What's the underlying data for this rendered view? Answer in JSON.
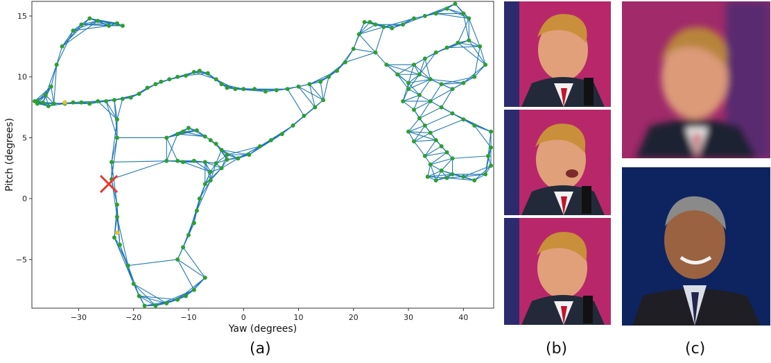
{
  "figure": {
    "panel_labels": [
      "(a)",
      "(b)",
      "(c)"
    ]
  },
  "chart_data": {
    "type": "scatter",
    "xlabel": "Yaw (degrees)",
    "ylabel": "Pitch (degrees)",
    "xlim": [
      -38.5,
      45.5
    ],
    "ylim": [
      -9.0,
      16.2
    ],
    "xticks": [
      -30,
      -20,
      -10,
      0,
      10,
      20,
      30,
      40
    ],
    "yticks": [
      -5,
      0,
      5,
      10,
      15
    ],
    "grid": false,
    "colors": {
      "edge": "#1f77b4",
      "vertex": "#2ca02c",
      "highlight": "#e6c229",
      "query": "#e8392f"
    },
    "series": [
      {
        "points": [
          [
            -38,
            8
          ],
          [
            -37.5,
            7.8
          ],
          [
            -36,
            8.5
          ],
          [
            -35,
            9.2
          ],
          [
            -34,
            11
          ],
          [
            -33,
            12.5
          ],
          [
            -31,
            13.8
          ],
          [
            -29.5,
            14.3
          ],
          [
            -28,
            14.8
          ],
          [
            -26.5,
            14.6
          ],
          [
            -24.5,
            14.2
          ],
          [
            -23,
            14.4
          ],
          [
            -22,
            14.2
          ],
          [
            -35.5,
            7.6
          ],
          [
            -34.5,
            7.8
          ],
          [
            -32.5,
            7.8
          ],
          [
            -31,
            7.9
          ],
          [
            -29.5,
            7.9
          ],
          [
            -28,
            7.8
          ],
          [
            -26.5,
            8
          ],
          [
            -25,
            8
          ],
          [
            -23.5,
            8.1
          ],
          [
            -22,
            8.2
          ],
          [
            -20.5,
            8.3
          ],
          [
            -19,
            8.6
          ],
          [
            -17.5,
            9.1
          ],
          [
            -16,
            9.4
          ],
          [
            -15,
            9.6
          ],
          [
            -13.5,
            9.8
          ],
          [
            -12,
            10
          ],
          [
            -10.5,
            10.1
          ],
          [
            -9,
            10.4
          ],
          [
            -8,
            10.5
          ],
          [
            -6.5,
            10.3
          ],
          [
            -5,
            9.8
          ],
          [
            -4,
            9.4
          ],
          [
            -3,
            9.1
          ],
          [
            -1.5,
            9
          ],
          [
            0,
            9
          ],
          [
            2,
            9
          ],
          [
            4,
            8.8
          ],
          [
            6,
            8.9
          ],
          [
            8,
            9
          ],
          [
            10,
            9.2
          ],
          [
            12,
            9.4
          ],
          [
            14,
            9.6
          ],
          [
            15.5,
            10
          ],
          [
            17,
            10.5
          ],
          [
            18.5,
            11.2
          ],
          [
            20,
            12.3
          ],
          [
            21,
            13.5
          ],
          [
            22,
            14.5
          ],
          [
            23,
            14.5
          ],
          [
            24,
            14.3
          ],
          [
            25.5,
            14.1
          ],
          [
            27,
            14
          ],
          [
            29,
            14.3
          ],
          [
            31,
            14.8
          ],
          [
            33,
            15
          ],
          [
            35,
            15.2
          ],
          [
            37,
            15.6
          ],
          [
            38.5,
            16
          ],
          [
            40,
            15.2
          ],
          [
            41,
            14.8
          ],
          [
            -37.5,
            8
          ],
          [
            -36.5,
            7.9
          ],
          [
            -23,
            6.5
          ],
          [
            -23,
            5
          ],
          [
            -24,
            3
          ],
          [
            -24,
            1.6
          ],
          [
            -23,
            -0.5
          ],
          [
            -23,
            -1.5
          ],
          [
            -23.5,
            -3.2
          ],
          [
            -22.5,
            -3.8
          ],
          [
            -21,
            -5.5
          ],
          [
            -20,
            -7
          ],
          [
            -19,
            -8
          ],
          [
            -18,
            -8.8
          ],
          [
            -16,
            -8.8
          ],
          [
            -14,
            -8.6
          ],
          [
            -12,
            -8.3
          ],
          [
            -10.5,
            -8
          ],
          [
            -9,
            -7.5
          ],
          [
            -7,
            -6.5
          ],
          [
            -14,
            3.1
          ],
          [
            -12,
            3.1
          ],
          [
            -11,
            3
          ],
          [
            -9,
            3.1
          ],
          [
            -7,
            3
          ],
          [
            -5,
            2.9
          ],
          [
            -3,
            3.2
          ],
          [
            -1,
            3.3
          ],
          [
            1,
            3.6
          ],
          [
            3,
            4.3
          ],
          [
            5,
            4.8
          ],
          [
            7,
            5.3
          ],
          [
            9,
            6
          ],
          [
            11,
            6.8
          ],
          [
            13,
            7.5
          ],
          [
            14.5,
            8.1
          ],
          [
            -14,
            5
          ],
          [
            -12,
            5.3
          ],
          [
            -11,
            5.5
          ],
          [
            -10,
            5.8
          ],
          [
            -8.5,
            5.6
          ],
          [
            -7,
            5.1
          ],
          [
            -6,
            4.8
          ],
          [
            -5,
            4.5
          ],
          [
            -4,
            4
          ],
          [
            -3,
            3.6
          ],
          [
            -6,
            2.2
          ],
          [
            -7,
            1.2
          ],
          [
            -8,
            0
          ],
          [
            -8.5,
            -1
          ],
          [
            -9,
            -2
          ],
          [
            -10,
            -3
          ],
          [
            -11,
            -4
          ],
          [
            -12,
            -5
          ],
          [
            -6,
            1.5
          ],
          [
            -4,
            2.5
          ],
          [
            30,
            9
          ],
          [
            29,
            8
          ],
          [
            31,
            7.3
          ],
          [
            32,
            6.6
          ],
          [
            33,
            6
          ],
          [
            34,
            5.4
          ],
          [
            35,
            4.8
          ],
          [
            36,
            4.3
          ],
          [
            37,
            3.8
          ],
          [
            38,
            3.3
          ],
          [
            30,
            5.5
          ],
          [
            31,
            4.7
          ],
          [
            33,
            3.5
          ],
          [
            34,
            2.8
          ],
          [
            36,
            2.3
          ],
          [
            38,
            2
          ],
          [
            40,
            1.8
          ],
          [
            42,
            1.5
          ],
          [
            44,
            2
          ],
          [
            45,
            2.7
          ],
          [
            44.5,
            3.5
          ],
          [
            45,
            4.2
          ],
          [
            45,
            5.5
          ],
          [
            42,
            6
          ],
          [
            40,
            6.5
          ],
          [
            38,
            7
          ],
          [
            36,
            7.5
          ],
          [
            34,
            8
          ],
          [
            32,
            8.5
          ],
          [
            31,
            11
          ],
          [
            33,
            11.5
          ],
          [
            35,
            12
          ],
          [
            37,
            12.4
          ],
          [
            39,
            12.8
          ],
          [
            41,
            13
          ],
          [
            43,
            12.5
          ],
          [
            44,
            11
          ],
          [
            42,
            10
          ],
          [
            40,
            9.5
          ],
          [
            38,
            9
          ],
          [
            36,
            9.4
          ],
          [
            34,
            9.8
          ],
          [
            32,
            10.2
          ],
          [
            24,
            12
          ],
          [
            26,
            11
          ],
          [
            28,
            10.2
          ],
          [
            30,
            9.5
          ],
          [
            33.5,
            1.8
          ],
          [
            35,
            1.5
          ],
          [
            37,
            1.7
          ]
        ]
      },
      {
        "points": [
          [
            -32.5,
            7.9
          ],
          [
            -23,
            -2.8
          ]
        ]
      },
      {
        "points": [
          [
            -24.5,
            1.2
          ]
        ]
      }
    ]
  }
}
